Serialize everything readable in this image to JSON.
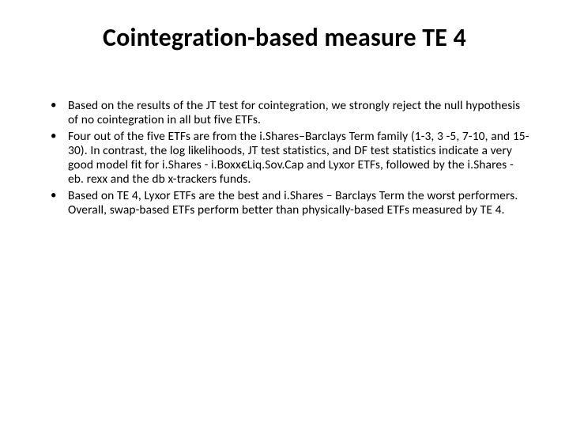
{
  "title_color": "#000000",
  "body_color": "#000000",
  "background_color": "#ffffff",
  "title_fontsize": 32,
  "body_fontsize": 15.5,
  "title": "Cointegration-based measure TE 4",
  "bullets": [
    "Based on the results of the JT test for cointegration, we strongly reject the null hypothesis of no cointegration in all but five ETFs.",
    "Four out of the five ETFs are from the i.Shares–Barclays Term family (1-3, 3 -5, 7-10, and 15-30). In contrast, the log likelihoods, JT test statistics,  and DF test statistics indicate a very good model fit for i.Shares - i.Boxx€Liq.Sov.Cap and Lyxor ETFs, followed by the i.Shares - eb. rexx and the db x-trackers funds.",
    "Based on TE 4, Lyxor ETFs are the best and i.Shares – Barclays Term the worst performers. Overall, swap-based ETFs perform better than physically-based ETFs measured by TE 4."
  ]
}
